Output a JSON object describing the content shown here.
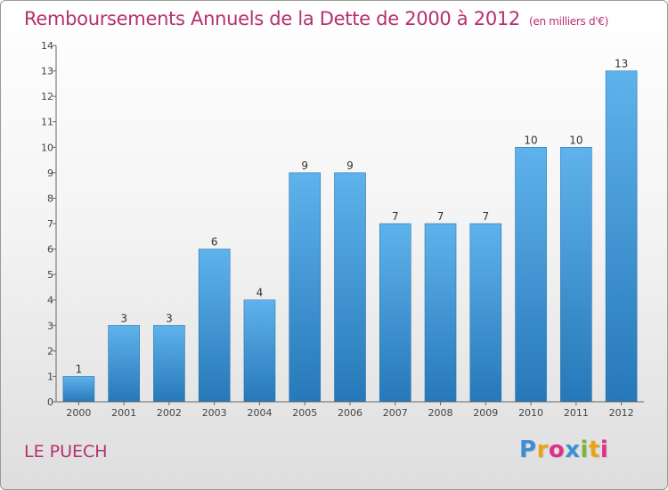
{
  "title": "Remboursements Annuels de la Dette de 2000 à 2012",
  "subtitle": "(en milliers d'€)",
  "location": "LE PUECH",
  "logo": {
    "letters": [
      "P",
      "r",
      "o",
      "x",
      "i",
      "t",
      "i"
    ],
    "colors": [
      "#3d8fd4",
      "#e8a317",
      "#e0318a",
      "#3d8fd4",
      "#7cb342",
      "#e8a317",
      "#e0318a"
    ]
  },
  "colors": {
    "title": "#b5306f",
    "bar_top": "#5fb3ec",
    "bar_bottom": "#2678b8",
    "axis": "#666666"
  },
  "chart_data": {
    "type": "bar",
    "title": "Remboursements Annuels de la Dette de 2000 à 2012",
    "subtitle": "(en milliers d'€)",
    "xlabel": "",
    "ylabel": "",
    "categories": [
      "2000",
      "2001",
      "2002",
      "2003",
      "2004",
      "2005",
      "2006",
      "2007",
      "2008",
      "2009",
      "2010",
      "2011",
      "2012"
    ],
    "values": [
      1,
      3,
      3,
      6,
      4,
      9,
      9,
      7,
      7,
      7,
      10,
      10,
      13
    ],
    "ylim": [
      0,
      14
    ],
    "yticks": [
      0,
      1,
      2,
      3,
      4,
      5,
      6,
      7,
      8,
      9,
      10,
      11,
      12,
      13,
      14
    ],
    "grid": false,
    "legend": "none"
  }
}
